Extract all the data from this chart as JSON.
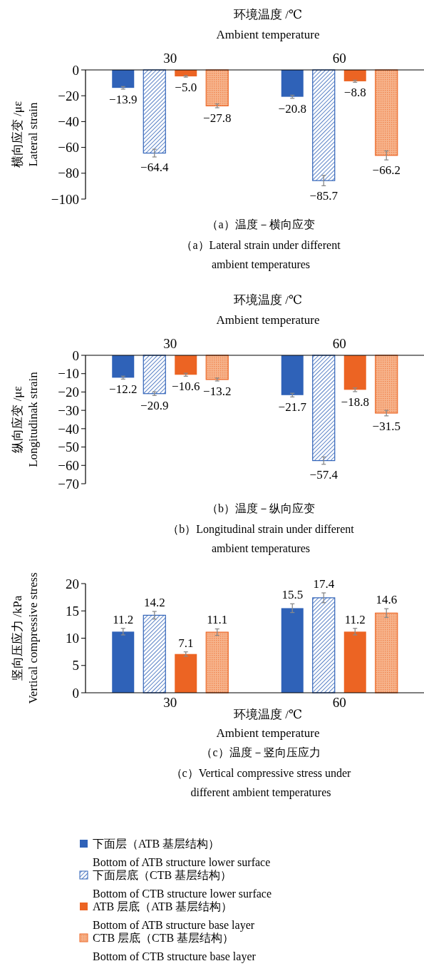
{
  "chart_data": [
    {
      "type": "bar",
      "xlabel": "环境温度 /℃\nAmbient temperature",
      "ylabel": "横向应变 /με\nLateral strain",
      "categories": [
        "30",
        "60"
      ],
      "ylim": [
        -100,
        0
      ],
      "yticks": [
        -100,
        -80,
        -60,
        -40,
        -20,
        0
      ],
      "legend": false,
      "series": [
        {
          "color": "#2f62b8",
          "values": [
            -13.9,
            -20.8
          ],
          "errors": [
            1,
            1.2
          ],
          "value_labels": [
            "−13.9",
            "−20.8"
          ]
        },
        {
          "color": "#2f62b8",
          "values": [
            -64.4,
            -85.7
          ],
          "errors": [
            3,
            4
          ],
          "value_labels": [
            "−64.4",
            "−85.7"
          ]
        },
        {
          "color": "#ec6423",
          "values": [
            -5.0,
            -8.8
          ],
          "errors": [
            0.6,
            0.8
          ],
          "value_labels": [
            "−5.0",
            "−8.8"
          ]
        },
        {
          "color": "#ec6423",
          "values": [
            -27.8,
            -66.2
          ],
          "errors": [
            1.5,
            3.5
          ],
          "value_labels": [
            "−27.8",
            "−66.2"
          ]
        }
      ],
      "annotations": [
        "（a）温度－横向应变",
        "（a）Lateral strain under different\nambient temperatures"
      ]
    },
    {
      "type": "bar",
      "xlabel": "环境温度 /℃\nAmbient temperature",
      "ylabel": "纵向应变 /με\nLongitudinak strain",
      "categories": [
        "30",
        "60"
      ],
      "ylim": [
        -70,
        0
      ],
      "yticks": [
        -70,
        -60,
        -50,
        -40,
        -30,
        -20,
        -10,
        0
      ],
      "legend": false,
      "series": [
        {
          "color": "#2f62b8",
          "values": [
            -12.2,
            -21.7
          ],
          "errors": [
            0.8,
            1
          ],
          "value_labels": [
            "−12.2",
            "−21.7"
          ]
        },
        {
          "color": "#2f62b8",
          "values": [
            -20.9,
            -57.4
          ],
          "errors": [
            1,
            2
          ],
          "value_labels": [
            "−20.9",
            "−57.4"
          ]
        },
        {
          "color": "#ec6423",
          "values": [
            -10.6,
            -18.8
          ],
          "errors": [
            0.8,
            1
          ],
          "value_labels": [
            "−10.6",
            "−18.8"
          ]
        },
        {
          "color": "#ec6423",
          "values": [
            -13.2,
            -31.5
          ],
          "errors": [
            0.8,
            1.5
          ],
          "value_labels": [
            "−13.2",
            "−31.5"
          ]
        }
      ],
      "annotations": [
        "（b）温度－纵向应变",
        "（b）Longitudinal strain under different\nambient temperatures"
      ]
    },
    {
      "type": "bar",
      "xlabel": "环境温度 /℃\nAmbient temperature",
      "ylabel": "竖向压应力 /kPa\nVertical compressive stress",
      "categories": [
        "30",
        "60"
      ],
      "ylim": [
        0,
        20
      ],
      "yticks": [
        0,
        5,
        10,
        15,
        20
      ],
      "legend": "bottom",
      "series": [
        {
          "name": "下面层（ATB 基层结构）\nBottom of ATB structure lower surface",
          "color": "#2f62b8",
          "values": [
            11.2,
            15.5
          ],
          "errors": [
            0.6,
            0.8
          ],
          "value_labels": [
            "11.2",
            "15.5"
          ]
        },
        {
          "name": "下面层底（CTB 基层结构）\nBottom of CTB structure lower surface",
          "color": "#2f62b8",
          "values": [
            14.2,
            17.4
          ],
          "errors": [
            0.7,
            0.9
          ],
          "value_labels": [
            "14.2",
            "17.4"
          ]
        },
        {
          "name": "ATB 层底（ATB 基层结构）\nBottom of ATB structure base layer",
          "color": "#ec6423",
          "values": [
            7.1,
            11.2
          ],
          "errors": [
            0.4,
            0.6
          ],
          "value_labels": [
            "7.1",
            "11.2"
          ]
        },
        {
          "name": "CTB 层底（CTB 基层结构）\nBottom of CTB structure base layer",
          "color": "#ec6423",
          "values": [
            11.1,
            14.6
          ],
          "errors": [
            0.6,
            0.8
          ],
          "value_labels": [
            "11.1",
            "14.6"
          ]
        }
      ],
      "annotations": [
        "（c）温度－竖向压应力",
        "（c）Vertical compressive stress under\ndifferent ambient temperatures"
      ]
    }
  ]
}
